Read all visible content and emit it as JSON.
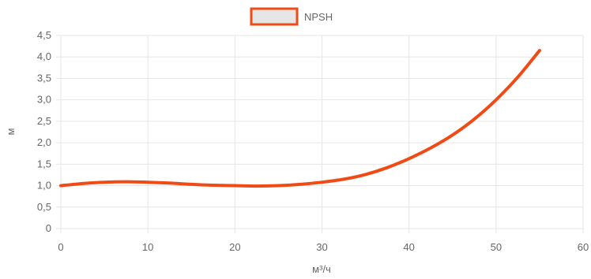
{
  "chart_data": {
    "type": "line",
    "xlabel": "м³/ч",
    "ylabel": "м",
    "xlim": [
      0,
      60
    ],
    "ylim": [
      0,
      4.5
    ],
    "x_ticks": [
      "0",
      "10",
      "20",
      "30",
      "40",
      "50",
      "60"
    ],
    "y_ticks": [
      "0",
      "0,5",
      "1,0",
      "1,5",
      "2,0",
      "2,5",
      "3,0",
      "3,5",
      "4,0",
      "4,5"
    ],
    "grid": true,
    "legend": "top-center",
    "series": [
      {
        "name": "NPSH",
        "color": "#f04b16",
        "legend_fill": "#e6e6e6",
        "x": [
          0,
          2.5,
          5,
          7.5,
          10,
          12.5,
          15,
          17.5,
          20,
          22.5,
          25,
          27.5,
          30,
          32.5,
          35,
          37.5,
          40,
          42.5,
          45,
          47.5,
          50,
          52.5,
          55
        ],
        "y": [
          1.0,
          1.05,
          1.08,
          1.09,
          1.08,
          1.06,
          1.03,
          1.01,
          1.0,
          0.99,
          1.0,
          1.03,
          1.08,
          1.15,
          1.26,
          1.42,
          1.63,
          1.88,
          2.18,
          2.55,
          3.0,
          3.53,
          4.15
        ]
      }
    ]
  }
}
